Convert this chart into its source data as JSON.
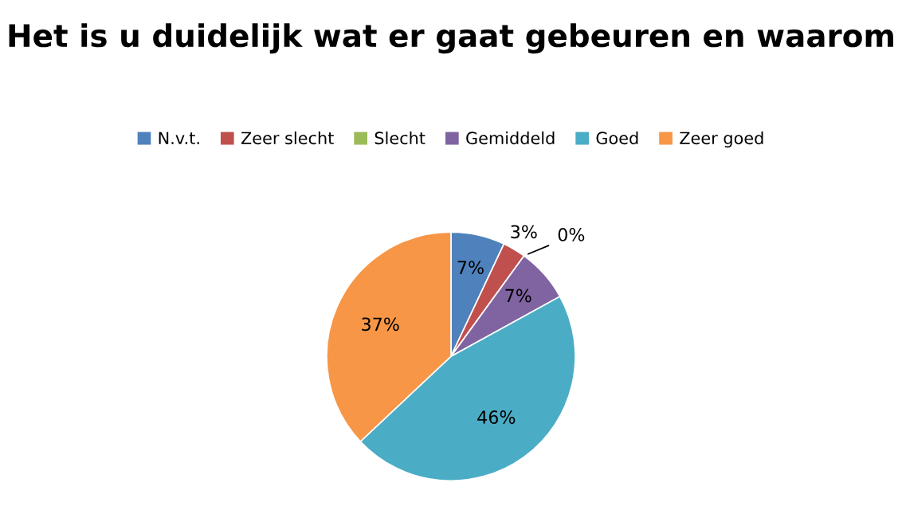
{
  "chart_data": {
    "type": "pie",
    "title": "Het is u duidelijk wat er gaat gebeuren en waarom",
    "categories": [
      "N.v.t.",
      "Zeer slecht",
      "Slecht",
      "Gemiddeld",
      "Goed",
      "Zeer goed"
    ],
    "values": [
      7,
      3,
      0,
      7,
      46,
      37
    ],
    "value_labels": [
      "7%",
      "3%",
      "0%",
      "7%",
      "46%",
      "37%"
    ],
    "colors": [
      "#4f81bd",
      "#c0504d",
      "#9bbb59",
      "#8064a2",
      "#4bacc6",
      "#f79646"
    ],
    "legend": "top"
  }
}
